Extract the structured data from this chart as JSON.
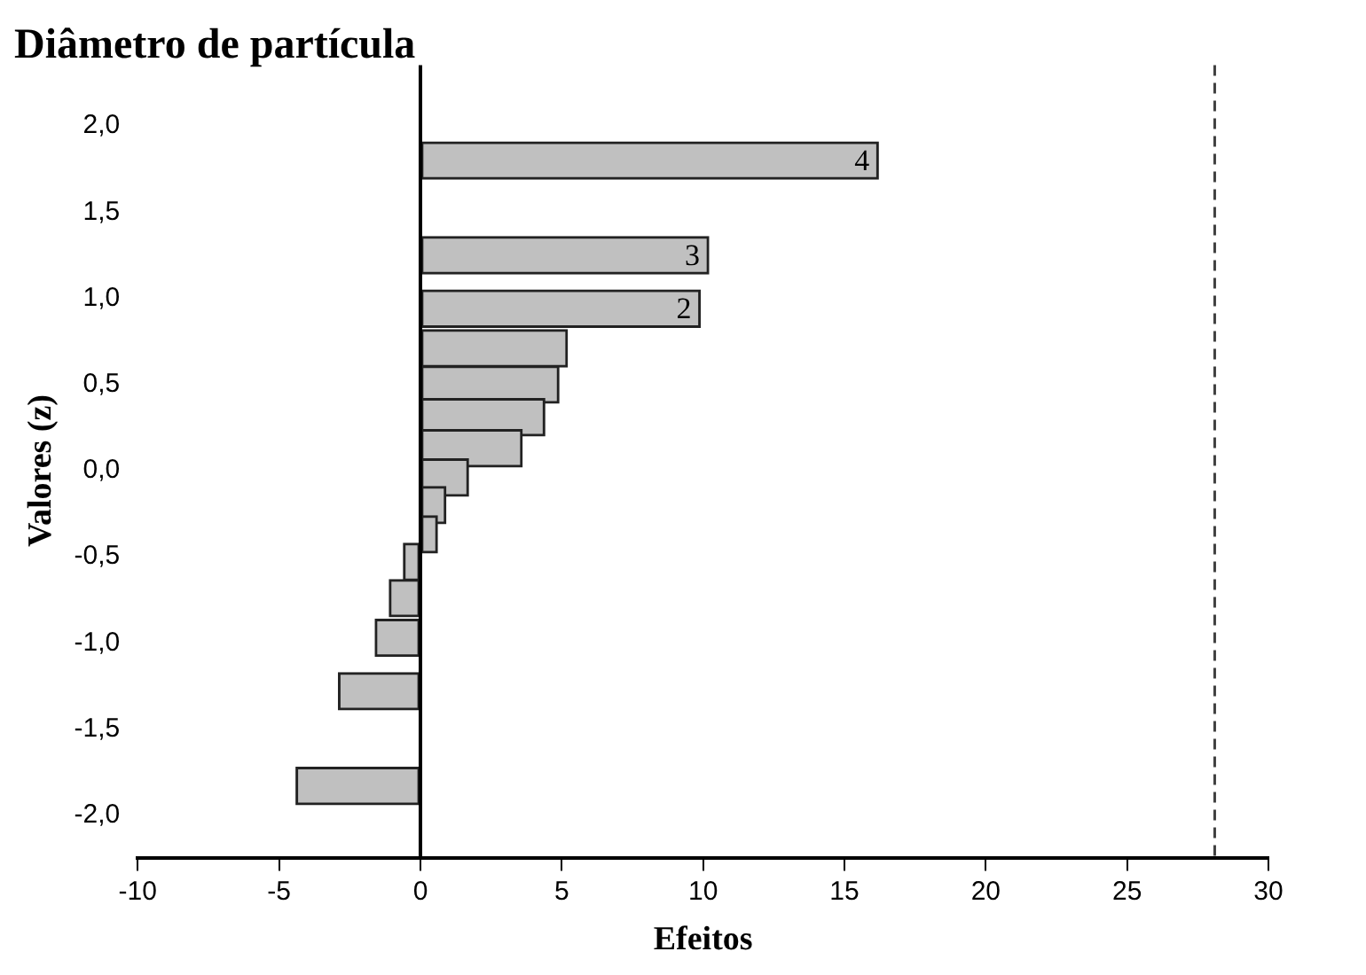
{
  "chart_data": {
    "type": "bar",
    "orientation": "horizontal",
    "title": "Diâmetro de partícula",
    "xlabel": "Efeitos",
    "ylabel": "Valores (z)",
    "x": [
      1.8,
      1.25,
      0.94,
      0.71,
      0.5,
      0.31,
      0.13,
      -0.04,
      -0.2,
      -0.37,
      -0.53,
      -0.74,
      -0.97,
      -1.28,
      -1.83
    ],
    "values": [
      16.2,
      10.2,
      9.9,
      5.2,
      4.9,
      4.4,
      3.6,
      1.7,
      0.9,
      0.6,
      -0.6,
      -1.1,
      -1.6,
      -2.9,
      -4.4
    ],
    "annotations": [
      {
        "text": "4",
        "x": 16.2,
        "y": 1.8
      },
      {
        "text": "3",
        "x": 10.2,
        "y": 1.25
      },
      {
        "text": "2",
        "x": 9.9,
        "y": 0.94
      }
    ],
    "color": "#c0c0c0",
    "xlim": [
      -10,
      30
    ],
    "xticks": [
      -10,
      -5,
      0,
      5,
      10,
      15,
      20,
      25,
      30
    ],
    "ylim": [
      -2,
      2
    ],
    "yticks": [
      {
        "value": -2,
        "label": "-2,0"
      },
      {
        "value": -1.5,
        "label": "-1,5"
      },
      {
        "value": -1,
        "label": "-1,0"
      },
      {
        "value": -0.5,
        "label": "-0,5"
      },
      {
        "value": 0,
        "label": "0,0"
      },
      {
        "value": 0.5,
        "label": "0,5"
      },
      {
        "value": 1,
        "label": "1,0"
      },
      {
        "value": 1.5,
        "label": "1,5"
      },
      {
        "value": 2,
        "label": "2,0"
      }
    ],
    "ref_lines": [
      {
        "axis": "x",
        "value": 0,
        "color": "#000000",
        "line_style": "solid"
      },
      {
        "axis": "x",
        "value": 28.1,
        "color": "#404040",
        "line_style": "dashed"
      }
    ],
    "grid": false,
    "legend": false
  }
}
